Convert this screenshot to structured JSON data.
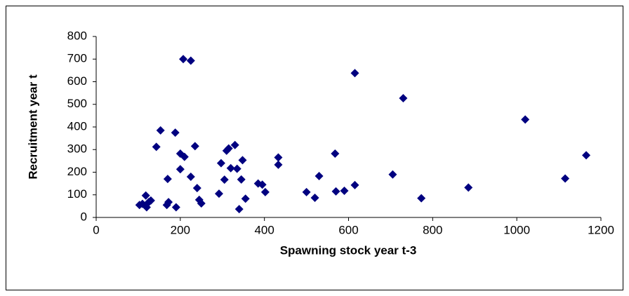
{
  "chart_data": {
    "type": "scatter",
    "x_label": "Spawning stock year t-3",
    "y_label": "Recruitment year t",
    "color": "#000080",
    "grid": false,
    "xlim": [
      0,
      1200
    ],
    "xticks": [
      0,
      200,
      400,
      600,
      800,
      1000,
      1200
    ],
    "ylim": [
      0,
      800
    ],
    "yticks": [
      0,
      100,
      200,
      300,
      400,
      500,
      600,
      700,
      800
    ],
    "x": [
      207,
      225,
      615,
      730,
      1020,
      1165,
      1115,
      885,
      773,
      705,
      615,
      590,
      570,
      568,
      530,
      520,
      500,
      433,
      433,
      402,
      395,
      385,
      355,
      348,
      345,
      340,
      330,
      335,
      320,
      315,
      310,
      305,
      297,
      292,
      245,
      250,
      240,
      235,
      225,
      210,
      200,
      200,
      188,
      190,
      170,
      168,
      172,
      153,
      143,
      130,
      125,
      120,
      118,
      110,
      103
    ],
    "values": [
      700,
      693,
      638,
      527,
      433,
      275,
      172,
      132,
      85,
      190,
      143,
      118,
      115,
      282,
      183,
      87,
      112,
      265,
      233,
      112,
      145,
      150,
      83,
      253,
      168,
      37,
      320,
      215,
      218,
      305,
      295,
      167,
      240,
      105,
      78,
      62,
      130,
      315,
      180,
      268,
      282,
      213,
      375,
      45,
      170,
      55,
      68,
      385,
      312,
      75,
      68,
      45,
      97,
      60,
      55
    ]
  }
}
